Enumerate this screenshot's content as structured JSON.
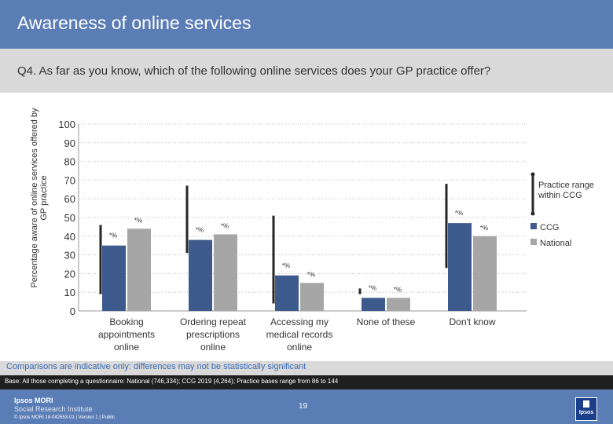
{
  "header": {
    "title": "Awareness of online services",
    "question": "Q4. As far as you know, which of the following online services does your GP practice offer?"
  },
  "chart_data": {
    "type": "bar",
    "ylabel": "Percentage aware of online services offered by GP practice",
    "ylim": [
      0,
      100
    ],
    "yticks": [
      0,
      10,
      20,
      30,
      40,
      50,
      60,
      70,
      80,
      90,
      100
    ],
    "categories": [
      [
        "Booking",
        "appointments",
        "online"
      ],
      [
        "Ordering repeat",
        "prescriptions",
        "online"
      ],
      [
        "Accessing my",
        "medical records",
        "online"
      ],
      [
        "None of these"
      ],
      [
        "Don't know"
      ]
    ],
    "series": [
      {
        "name": "CCG",
        "color": "#3c5a8c",
        "values": [
          35,
          38,
          19,
          7,
          47
        ]
      },
      {
        "name": "National",
        "color": "#a6a6a6",
        "values": [
          44,
          41,
          15,
          7,
          40
        ]
      }
    ],
    "data_labels": {
      "ccg": [
        "*%",
        "*%",
        "*%",
        "*%",
        "*%"
      ],
      "national": [
        "*%",
        "*%",
        "*%",
        "*%",
        "*%"
      ]
    },
    "practice_range": [
      [
        9,
        46
      ],
      [
        31,
        67
      ],
      [
        4,
        51
      ],
      [
        9,
        12
      ],
      [
        23,
        68
      ]
    ],
    "legend": {
      "range_label_line1": "Practice range",
      "range_label_line2": "within CCG",
      "position": "right"
    },
    "grid": true
  },
  "footer": {
    "note": "Comparisons are indicative only: differences may not be statistically significant",
    "base": "Base: All those completing a questionnaire: National (746,334); CCG 2019 (4,264); Practice bases range from 86 to 144",
    "brand_line1": "Ipsos MORI",
    "brand_line2": "Social Research Institute",
    "copyright": "© Ipsos MORI     18-042653-01 | Version 1 | Public",
    "page_number": "19",
    "logo_text": "Ipsos"
  }
}
